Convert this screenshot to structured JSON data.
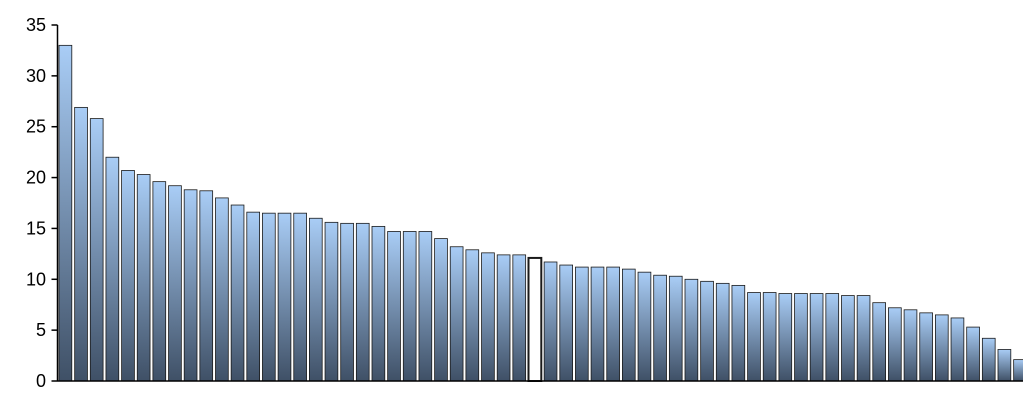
{
  "chart_data": {
    "type": "bar",
    "title": "",
    "xlabel": "",
    "ylabel": "",
    "ylim": [
      0,
      35
    ],
    "yticks": [
      0,
      5,
      10,
      15,
      20,
      25,
      30,
      35
    ],
    "grid": false,
    "legend": "none",
    "highlighted_index": 30,
    "values": [
      33.0,
      26.9,
      25.8,
      22.0,
      20.7,
      20.3,
      19.6,
      19.2,
      18.8,
      18.7,
      18.0,
      17.3,
      16.6,
      16.5,
      16.5,
      16.5,
      16.0,
      15.6,
      15.5,
      15.5,
      15.2,
      14.7,
      14.7,
      14.7,
      14.0,
      13.2,
      12.9,
      12.6,
      12.4,
      12.4,
      12.1,
      11.7,
      11.4,
      11.2,
      11.2,
      11.2,
      11.0,
      10.7,
      10.4,
      10.3,
      10.0,
      9.8,
      9.6,
      9.4,
      8.7,
      8.7,
      8.6,
      8.6,
      8.6,
      8.6,
      8.4,
      8.4,
      7.7,
      7.2,
      7.0,
      6.7,
      6.5,
      6.2,
      5.3,
      4.2,
      3.1,
      2.1
    ]
  },
  "colors": {
    "bar_top": "#a9cdf6",
    "bar_bottom": "#3f5066",
    "bar_stroke": "#1a1a1a",
    "highlight_fill": "#ffffff",
    "axis": "#000000"
  }
}
